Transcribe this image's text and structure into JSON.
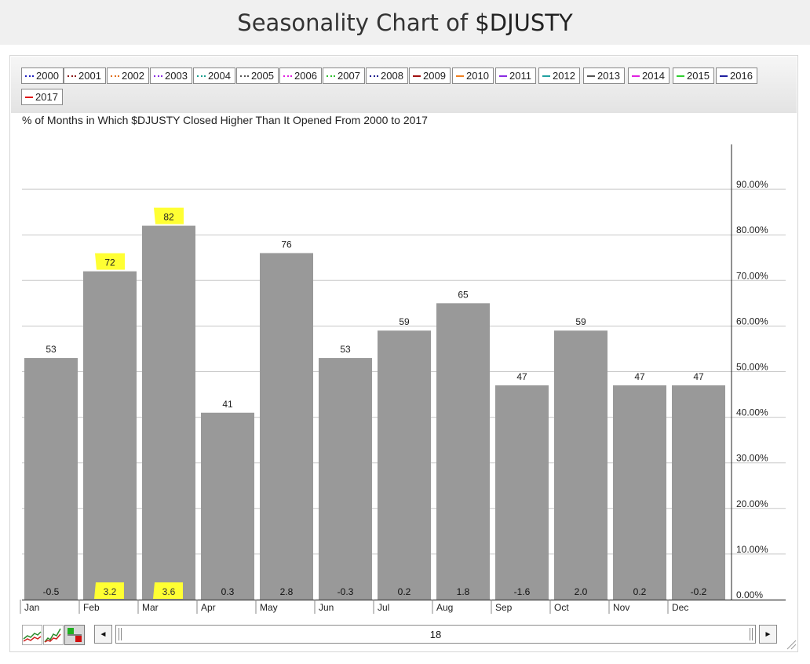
{
  "header": {
    "title_prefix": "Seasonality Chart of ",
    "title_symbol": "$DJUSTY"
  },
  "legend": [
    {
      "label": "2000",
      "color": "#1f1fbf",
      "style": "dotted"
    },
    {
      "label": "2001",
      "color": "#8b1a1a",
      "style": "dotted"
    },
    {
      "label": "2002",
      "color": "#e07020",
      "style": "dotted"
    },
    {
      "label": "2003",
      "color": "#8a2be2",
      "style": "dotted"
    },
    {
      "label": "2004",
      "color": "#1a9e8e",
      "style": "dotted"
    },
    {
      "label": "2005",
      "color": "#555555",
      "style": "dotted"
    },
    {
      "label": "2006",
      "color": "#e020e0",
      "style": "dotted"
    },
    {
      "label": "2007",
      "color": "#30c030",
      "style": "dotted"
    },
    {
      "label": "2008",
      "color": "#1f1f8f",
      "style": "dotted"
    },
    {
      "label": "2009",
      "color": "#a01010",
      "style": "solid"
    },
    {
      "label": "2010",
      "color": "#f08020",
      "style": "solid"
    },
    {
      "label": "2011",
      "color": "#8a2be2",
      "style": "solid"
    },
    {
      "label": "2012",
      "color": "#20a0a0",
      "style": "solid"
    },
    {
      "label": "2013",
      "color": "#555555",
      "style": "solid"
    },
    {
      "label": "2014",
      "color": "#e020e0",
      "style": "solid"
    },
    {
      "label": "2015",
      "color": "#30d030",
      "style": "solid"
    },
    {
      "label": "2016",
      "color": "#1f1f9f",
      "style": "solid"
    },
    {
      "label": "2017",
      "color": "#e01010",
      "style": "solid"
    }
  ],
  "chart_data": {
    "type": "bar",
    "subtitle": "% of Months in Which $DJUSTY Closed Higher Than It Opened From 2000 to 2017",
    "categories": [
      "Jan",
      "Feb",
      "Mar",
      "Apr",
      "May",
      "Jun",
      "Jul",
      "Aug",
      "Sep",
      "Oct",
      "Nov",
      "Dec"
    ],
    "values": [
      53,
      72,
      82,
      41,
      76,
      53,
      59,
      65,
      47,
      59,
      47,
      47
    ],
    "value_labels": [
      "53",
      "72",
      "82",
      "41",
      "76",
      "53",
      "59",
      "65",
      "47",
      "59",
      "47",
      "47"
    ],
    "avg_return_labels": [
      "-0.5",
      "3.2",
      "3.6",
      "0.3",
      "2.8",
      "-0.3",
      "0.2",
      "1.8",
      "-1.6",
      "2.0",
      "0.2",
      "-0.2"
    ],
    "highlighted_months": [
      "Feb",
      "Mar"
    ],
    "y_ticks": [
      0,
      10,
      20,
      30,
      40,
      50,
      60,
      70,
      80,
      90
    ],
    "y_tick_labels": [
      "0.00%",
      "10.00%",
      "20.00%",
      "30.00%",
      "40.00%",
      "50.00%",
      "60.00%",
      "70.00%",
      "80.00%",
      "90.00%"
    ],
    "ylim": [
      0,
      100
    ],
    "y_axis_position": "right",
    "grid": true,
    "bar_color": "#999999",
    "highlight_color": "#ffff33"
  },
  "scrollbar": {
    "value": "18",
    "left_arrow": "◄",
    "right_arrow": "►"
  }
}
